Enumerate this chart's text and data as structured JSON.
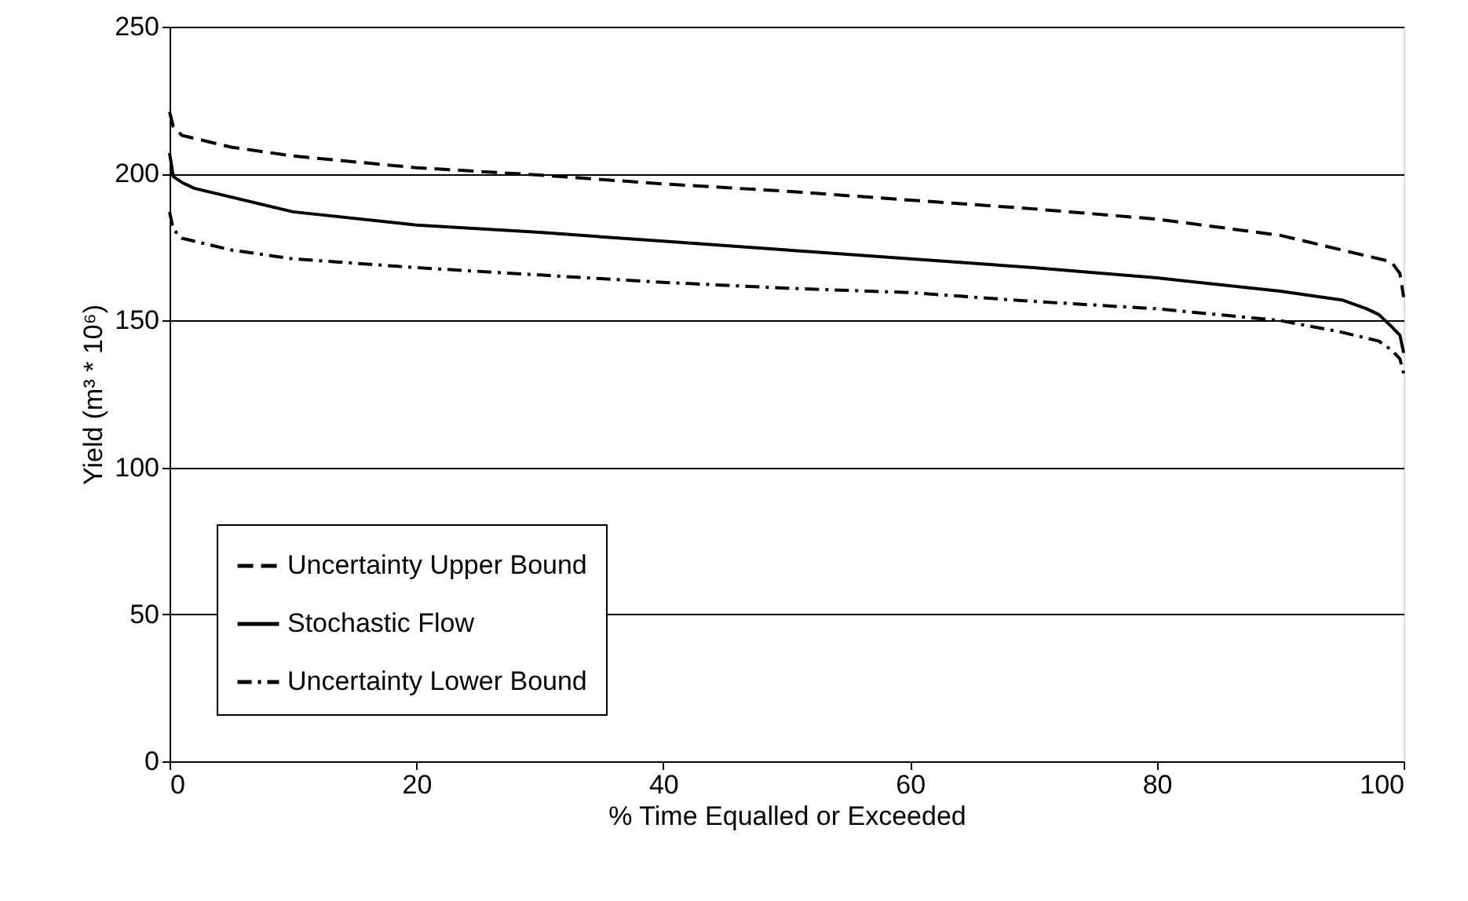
{
  "chart_data": {
    "type": "line",
    "xlabel": "% Time Equalled or Exceeded",
    "ylabel": "Yield (m³ * 10⁶)",
    "x": [
      0,
      0.3,
      1,
      2,
      5,
      10,
      20,
      30,
      40,
      50,
      60,
      70,
      80,
      90,
      95,
      97,
      98,
      99,
      99.7,
      100
    ],
    "series": [
      {
        "name": "Uncertainty Upper Bound",
        "color": "#000000",
        "line_style": "dashed",
        "values": [
          221,
          216,
          213,
          212,
          209,
          206,
          202,
          199.5,
          196.5,
          194,
          191,
          188,
          184.5,
          179,
          174,
          172,
          171,
          170,
          166,
          158
        ]
      },
      {
        "name": "Stochastic Flow",
        "color": "#000000",
        "line_style": "solid",
        "values": [
          207,
          199,
          197,
          195,
          192,
          187,
          182.5,
          180,
          177,
          174,
          171,
          168,
          164.5,
          160,
          157,
          154,
          152,
          148,
          145,
          139
        ]
      },
      {
        "name": "Uncertainty Lower Bound",
        "color": "#000000",
        "line_style": "dotted",
        "values": [
          187,
          181,
          178,
          177,
          174,
          171,
          168,
          165.5,
          163,
          161,
          159.5,
          156.5,
          154,
          150,
          146,
          144,
          143,
          140,
          137,
          132
        ]
      }
    ],
    "xlim": [
      0,
      100
    ],
    "xticks": [
      0,
      20,
      40,
      60,
      80,
      100
    ],
    "ylim": [
      0,
      250
    ],
    "yticks": [
      0,
      50,
      100,
      150,
      200,
      250
    ],
    "grid": "y",
    "legend": "bottom left",
    "marker": "none"
  }
}
